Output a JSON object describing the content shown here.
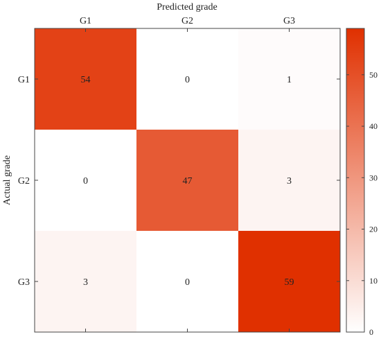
{
  "chart_data": {
    "type": "heatmap",
    "title": "",
    "xlabel": "Predicted grade",
    "ylabel": "Actual grade",
    "x_categories": [
      "G1",
      "G2",
      "G3"
    ],
    "y_categories": [
      "G1",
      "G2",
      "G3"
    ],
    "values": [
      [
        54,
        0,
        1
      ],
      [
        0,
        47,
        3
      ],
      [
        3,
        0,
        59
      ]
    ],
    "x_axis_position": "top",
    "colorbar": {
      "range": [
        0,
        59
      ],
      "ticks": [
        0,
        10,
        20,
        30,
        40,
        50
      ],
      "low_color": "#ffffff",
      "high_color": "#e03000"
    },
    "grid": false,
    "legend": "none"
  }
}
